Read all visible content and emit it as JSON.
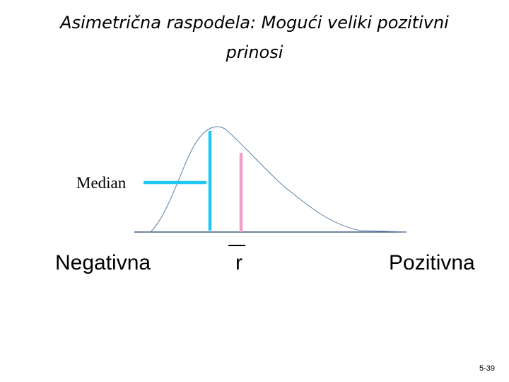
{
  "title_lines": [
    "Asimetrična raspodela: Mogući veliki pozitivni",
    "prinosi"
  ],
  "labels": {
    "median": "Median",
    "negative": "Negativna",
    "mean": "r",
    "positive": "Pozitivna"
  },
  "slide_number": "5-39"
}
